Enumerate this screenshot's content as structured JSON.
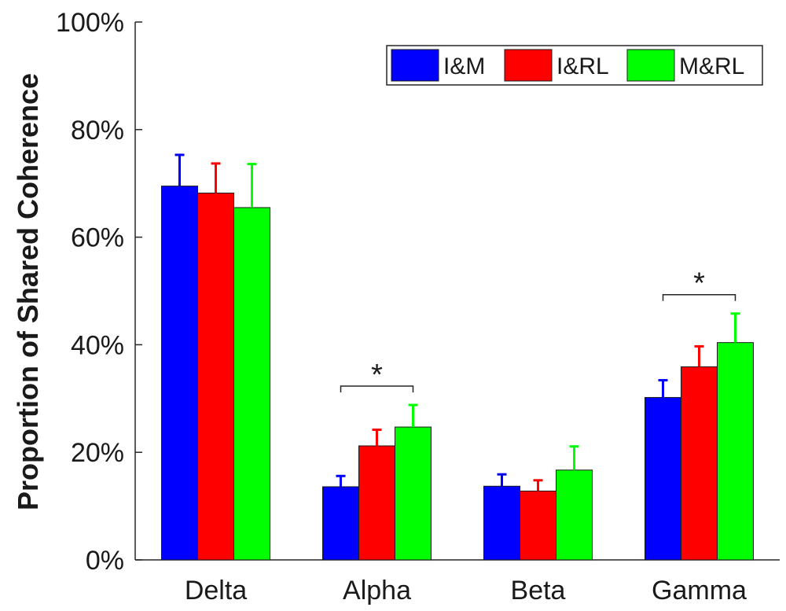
{
  "chart_data": {
    "type": "bar",
    "title": "",
    "xlabel": "",
    "ylabel": "Proportion of Shared Coherence",
    "ylim": [
      0,
      100
    ],
    "yticks": [
      0,
      20,
      40,
      60,
      80,
      100
    ],
    "ytick_labels": [
      "0%",
      "20%",
      "40%",
      "60%",
      "80%",
      "100%"
    ],
    "categories": [
      "Delta",
      "Alpha",
      "Beta",
      "Gamma"
    ],
    "series": [
      {
        "name": "I&M",
        "color": "#0000ff",
        "values": [
          69.5,
          13.6,
          13.7,
          30.2
        ],
        "errors": [
          5.8,
          2.0,
          2.2,
          3.2
        ]
      },
      {
        "name": "I&RL",
        "color": "#ff0000",
        "values": [
          68.2,
          21.2,
          12.8,
          35.9
        ],
        "errors": [
          5.5,
          3.0,
          2.0,
          3.8
        ]
      },
      {
        "name": "M&RL",
        "color": "#00ff00",
        "values": [
          65.5,
          24.7,
          16.7,
          40.4
        ],
        "errors": [
          8.1,
          4.1,
          4.4,
          5.4
        ]
      }
    ],
    "legend": {
      "position": "top-right"
    },
    "grid": false,
    "annotations": [
      {
        "category": "Alpha",
        "from_series": "I&M",
        "to_series": "M&RL",
        "text": "*"
      },
      {
        "category": "Gamma",
        "from_series": "I&M",
        "to_series": "M&RL",
        "text": "*"
      }
    ]
  }
}
